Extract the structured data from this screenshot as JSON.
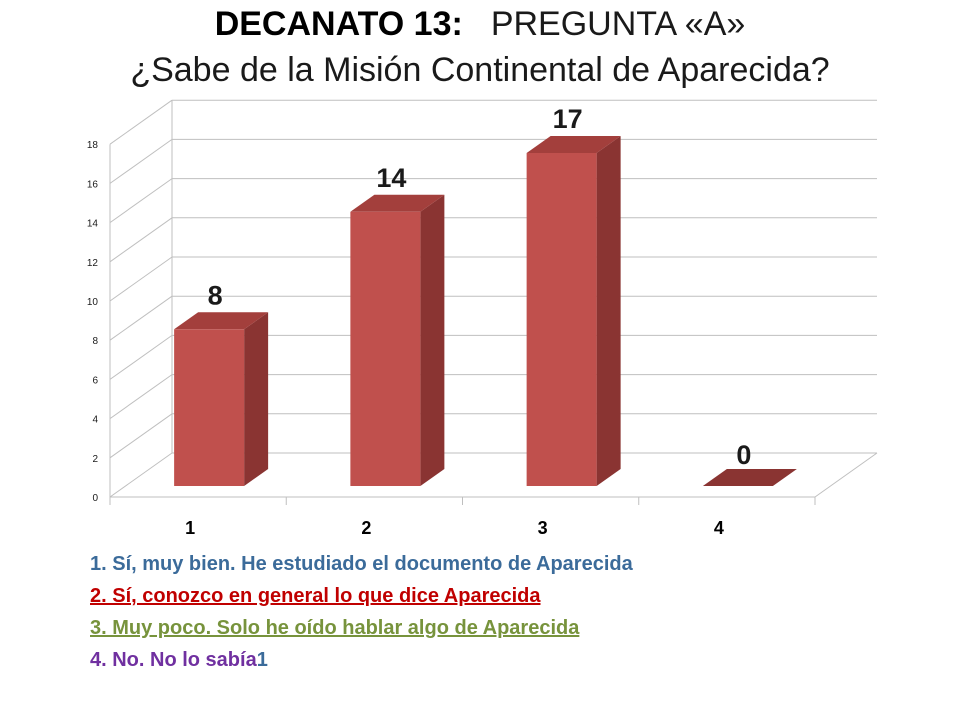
{
  "title": {
    "bold": "DECANATO 13:",
    "rest": "PREGUNTA «A»",
    "question": "¿Sabe de la Misión Continental de Aparecida?"
  },
  "chart_data": {
    "type": "bar",
    "categories": [
      "1",
      "2",
      "3",
      "4"
    ],
    "values": [
      8,
      14,
      17,
      0
    ],
    "data_labels": [
      "8",
      "14",
      "17",
      "0"
    ],
    "yticks": [
      "0",
      "2",
      "4",
      "6",
      "8",
      "10",
      "12",
      "14",
      "16",
      "18"
    ],
    "ylim": [
      0,
      18
    ],
    "grid": true,
    "bar_color": "#c0504d",
    "bar_side_color": "#8a3432",
    "bar_top_color": "#a33f3c",
    "title": "",
    "xlabel": "",
    "ylabel": ""
  },
  "legend": {
    "item1": "1. Sí, muy bien. He estudiado el documento de Aparecida",
    "item2": "2. Sí, conozco en general lo que dice Aparecida",
    "item3": "3. Muy poco. Solo he oído hablar algo de Aparecida",
    "item4": "4. No. No lo sabía",
    "item4_tail": "1"
  }
}
